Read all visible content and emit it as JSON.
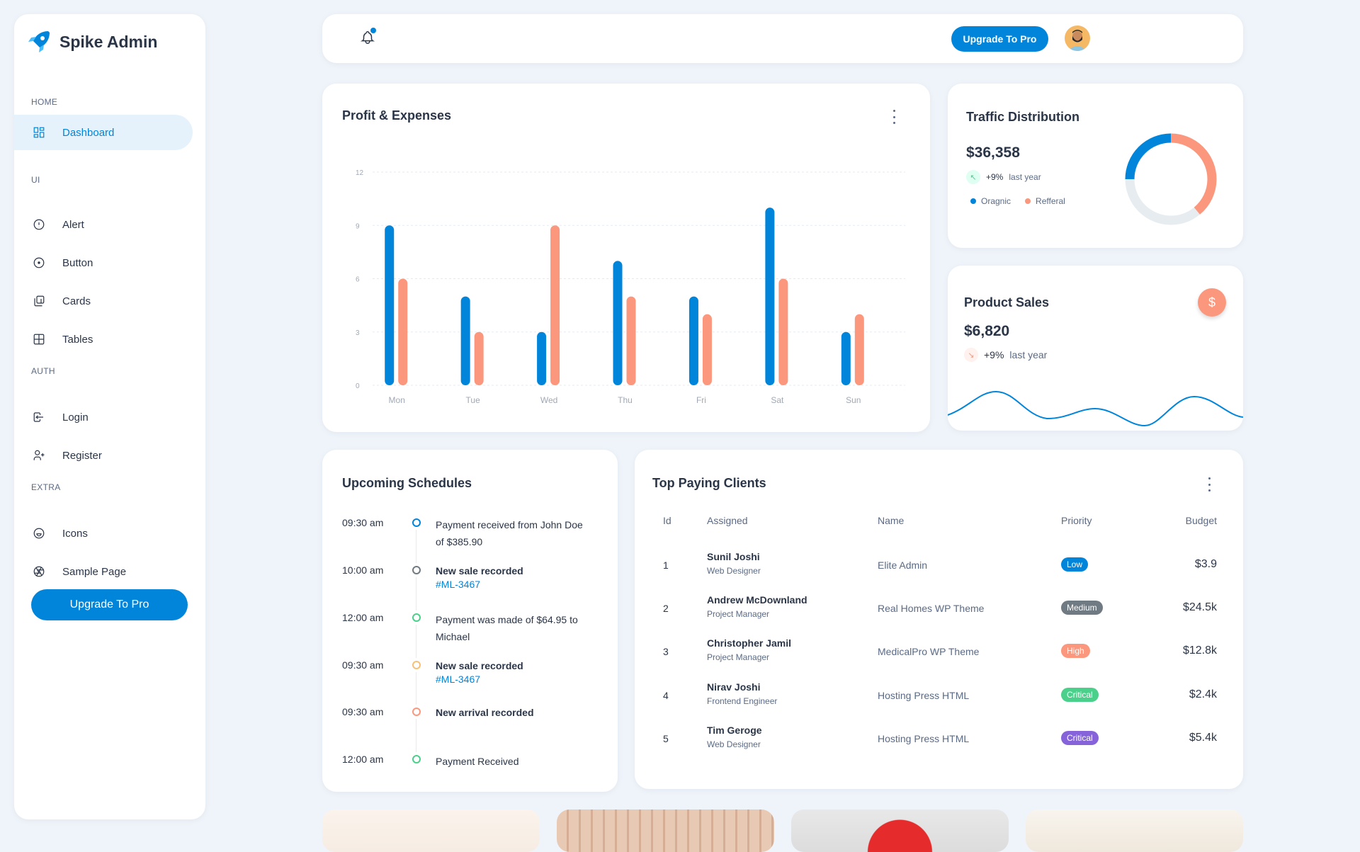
{
  "app": {
    "title": "Spike Admin"
  },
  "sidebar": {
    "sections": [
      {
        "label": "HOME",
        "items": [
          {
            "label": "Dashboard",
            "icon": "layout-dashboard-icon",
            "active": true
          }
        ]
      },
      {
        "label": "UI",
        "items": [
          {
            "label": "Alert",
            "icon": "alert-circle-icon"
          },
          {
            "label": "Button",
            "icon": "circle-dot-icon"
          },
          {
            "label": "Cards",
            "icon": "cards-icon"
          },
          {
            "label": "Tables",
            "icon": "table-icon"
          }
        ]
      },
      {
        "label": "AUTH",
        "items": [
          {
            "label": "Login",
            "icon": "login-icon"
          },
          {
            "label": "Register",
            "icon": "user-plus-icon"
          }
        ]
      },
      {
        "label": "EXTRA",
        "items": [
          {
            "label": "Icons",
            "icon": "mood-happy-icon"
          },
          {
            "label": "Sample Page",
            "icon": "aperture-icon"
          }
        ]
      }
    ],
    "upgrade_label": "Upgrade To Pro"
  },
  "header": {
    "upgrade_label": "Upgrade To Pro",
    "notification_icon": "bell-icon",
    "has_notification": true
  },
  "colors": {
    "primary": "#0085db",
    "secondary": "#fb977d",
    "grey": "#e7ecf0",
    "success": "#4bd08b",
    "purple": "#8763da",
    "medium": "#707a82"
  },
  "profit": {
    "title": "Profit & Expenses"
  },
  "chart_data": {
    "type": "bar",
    "categories": [
      "Mon",
      "Tue",
      "Wed",
      "Thu",
      "Fri",
      "Sat",
      "Sun"
    ],
    "series": [
      {
        "values": [
          9,
          5,
          3,
          7,
          5,
          10,
          3
        ],
        "color": "#0085db"
      },
      {
        "values": [
          6,
          3,
          9,
          5,
          4,
          6,
          4
        ],
        "color": "#fb977d"
      }
    ],
    "yticks": [
      0,
      3,
      6,
      9,
      12
    ],
    "ylim": [
      0,
      12
    ],
    "grid": true
  },
  "traffic": {
    "title": "Traffic Distribution",
    "amount": "$36,358",
    "change": "+9%",
    "period": "last year",
    "legend": [
      {
        "label": "Oragnic",
        "color": "#0085db"
      },
      {
        "label": "Refferal",
        "color": "#fb977d"
      }
    ],
    "donut": [
      {
        "value": 25,
        "color": "#0085db"
      },
      {
        "value": 39,
        "color": "#fb977d"
      },
      {
        "value": 36,
        "color": "#e7ecf0"
      }
    ]
  },
  "product_sales": {
    "title": "Product Sales",
    "amount": "$6,820",
    "change": "+9%",
    "period": "last year",
    "icon": "currency-dollar-icon"
  },
  "schedules": {
    "title": "Upcoming Schedules",
    "items": [
      {
        "time": "09:30 am",
        "text": "Payment received from John Doe of $385.90",
        "bold": false,
        "link": "",
        "color": "#0085db"
      },
      {
        "time": "10:00 am",
        "text": "New sale recorded",
        "bold": true,
        "link": "#ML-3467",
        "color": "#707a82"
      },
      {
        "time": "12:00 am",
        "text": "Payment was made of $64.95 to Michael",
        "bold": false,
        "link": "",
        "color": "#4bd08b"
      },
      {
        "time": "09:30 am",
        "text": "New sale recorded",
        "bold": true,
        "link": "#ML-3467",
        "color": "#f8c076"
      },
      {
        "time": "09:30 am",
        "text": "New arrival recorded",
        "bold": true,
        "link": "",
        "color": "#fb977d"
      },
      {
        "time": "12:00 am",
        "text": "Payment Received",
        "bold": false,
        "link": "",
        "color": "#4bd08b"
      }
    ]
  },
  "clients": {
    "title": "Top Paying Clients",
    "columns": [
      "Id",
      "Assigned",
      "Name",
      "Priority",
      "Budget"
    ],
    "rows": [
      {
        "id": "1",
        "name": "Sunil Joshi",
        "role": "Web Designer",
        "project": "Elite Admin",
        "priority": "Low",
        "priority_color": "#0085db",
        "budget": "$3.9"
      },
      {
        "id": "2",
        "name": "Andrew McDownland",
        "role": "Project Manager",
        "project": "Real Homes WP Theme",
        "priority": "Medium",
        "priority_color": "#707a82",
        "budget": "$24.5k"
      },
      {
        "id": "3",
        "name": "Christopher Jamil",
        "role": "Project Manager",
        "project": "MedicalPro WP Theme",
        "priority": "High",
        "priority_color": "#fb977d",
        "budget": "$12.8k"
      },
      {
        "id": "4",
        "name": "Nirav Joshi",
        "role": "Frontend Engineer",
        "project": "Hosting Press HTML",
        "priority": "Critical",
        "priority_color": "#4bd08b",
        "budget": "$2.4k"
      },
      {
        "id": "5",
        "name": "Tim Geroge",
        "role": "Web Designer",
        "project": "Hosting Press HTML",
        "priority": "Critical",
        "priority_color": "#8763da",
        "budget": "$5.4k"
      }
    ]
  }
}
